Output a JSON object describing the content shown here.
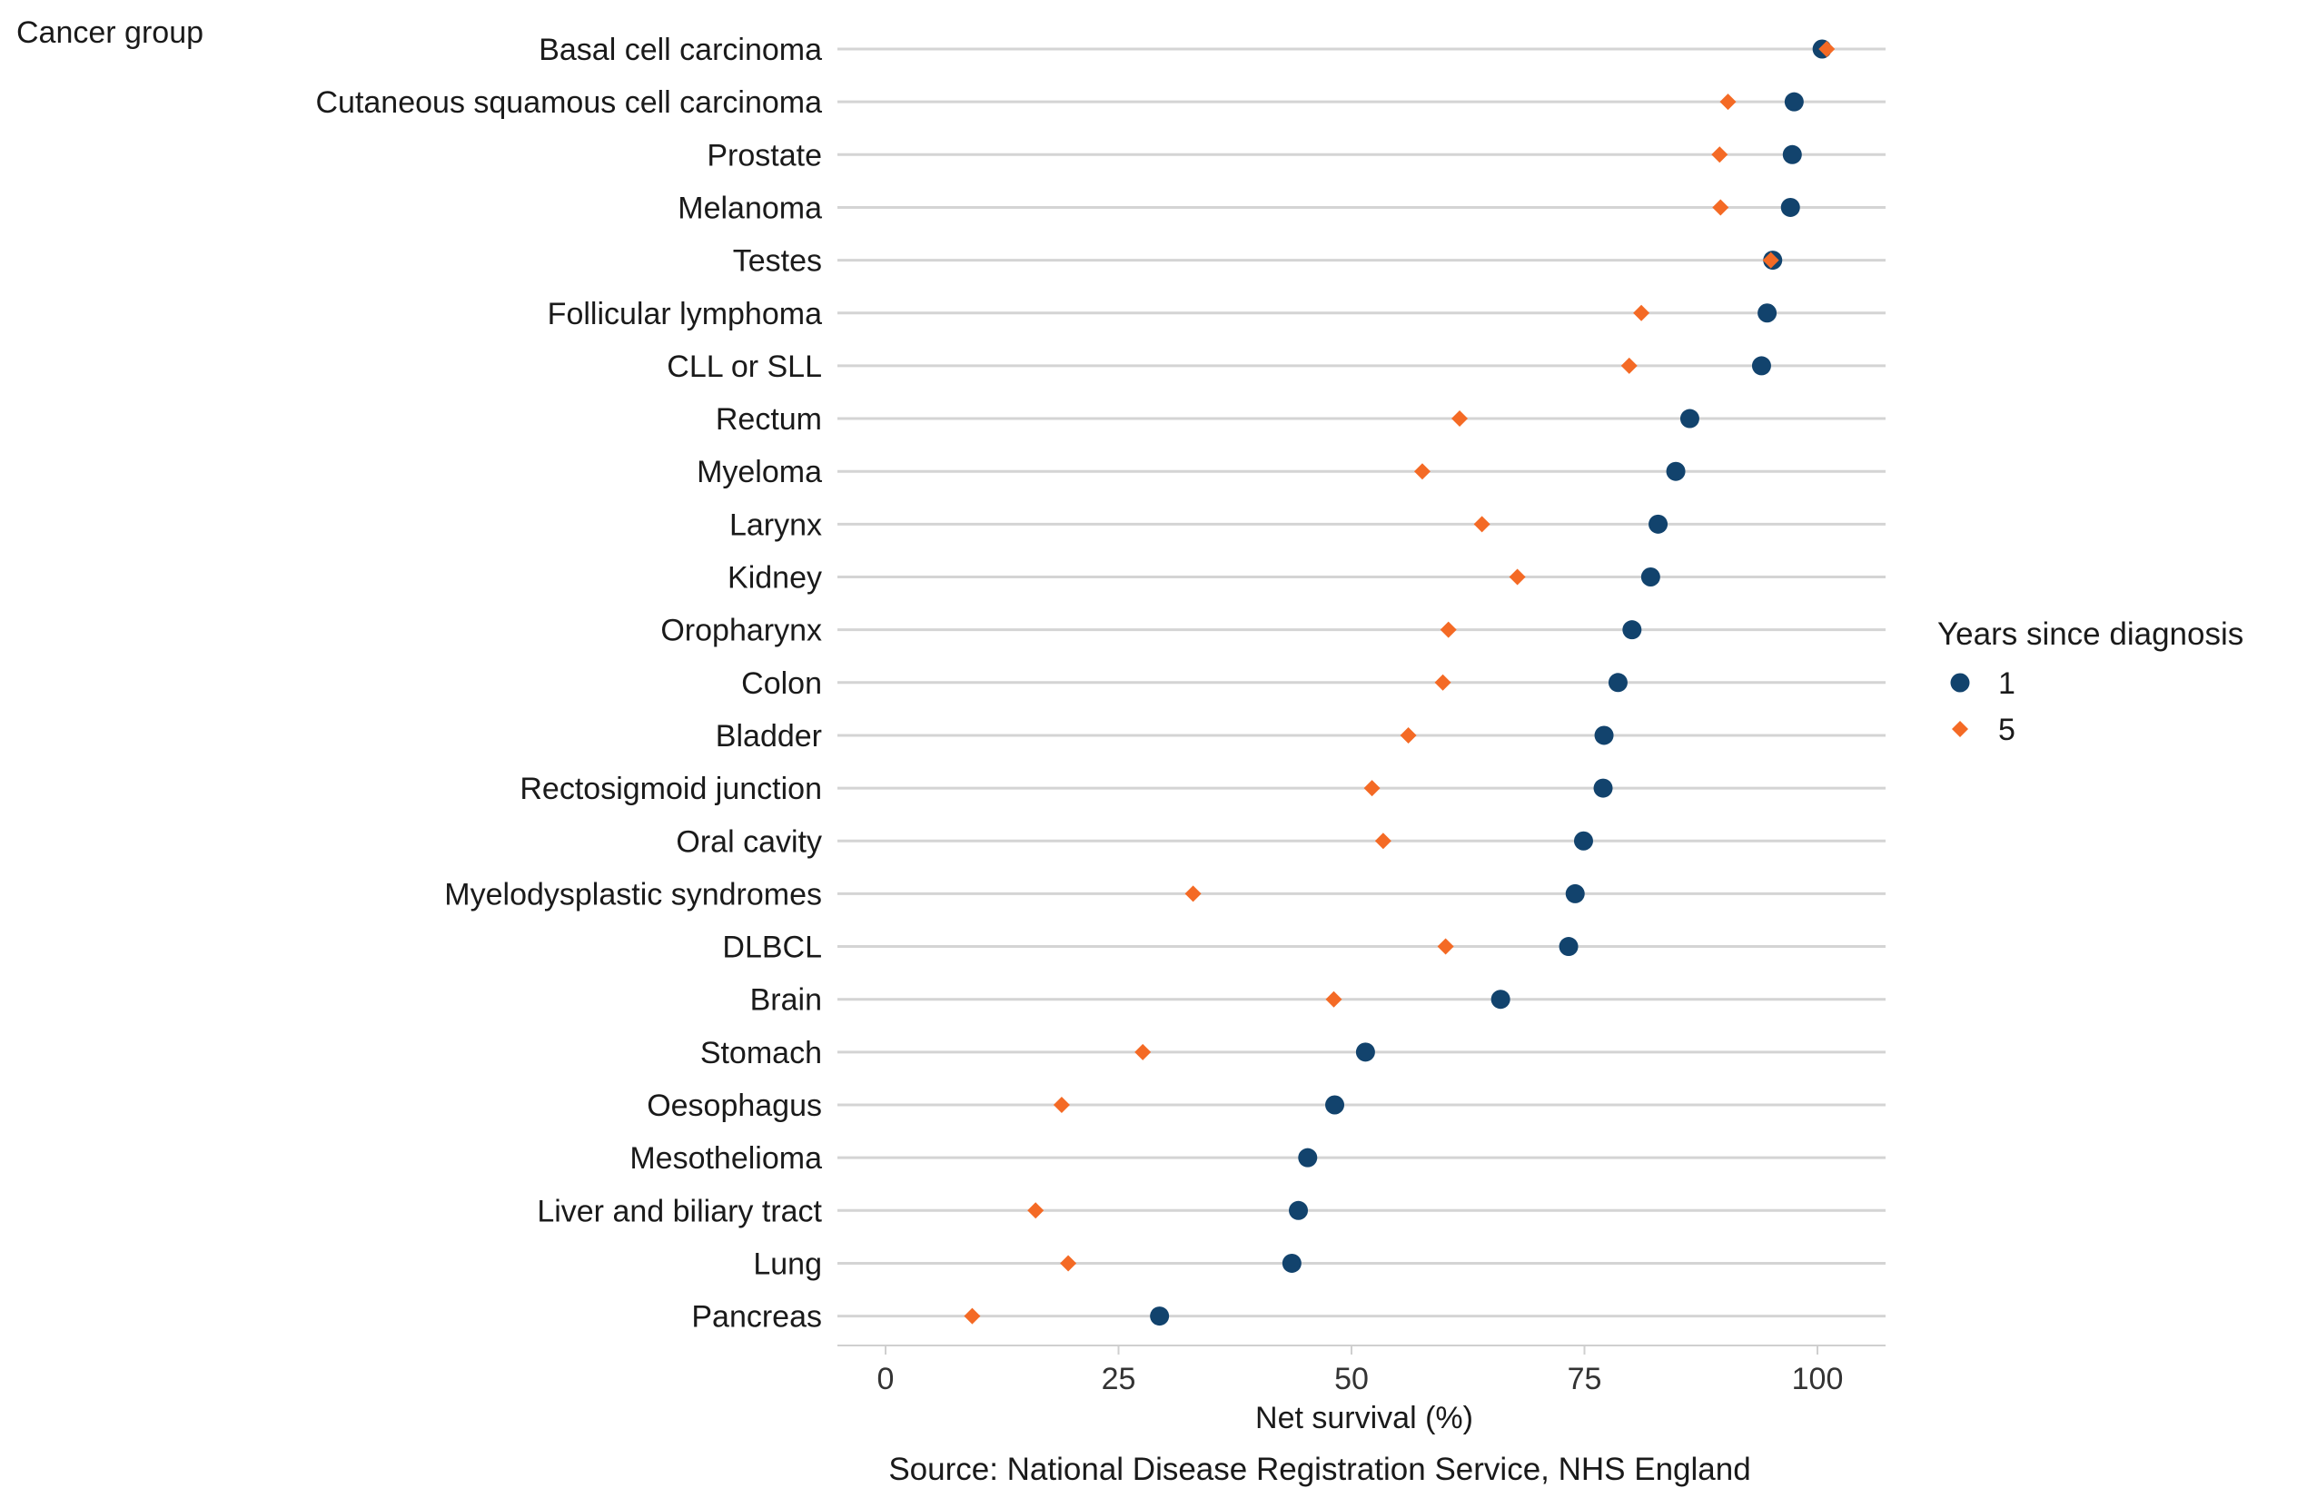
{
  "chart_data": {
    "type": "scatter",
    "ylabel": "Cancer group",
    "xlabel": "Net survival (%)",
    "source": "Source: National Disease Registration Service, NHS England",
    "xlim": [
      -5,
      108
    ],
    "xticks": [
      0,
      25,
      50,
      75,
      100
    ],
    "grid": "horizontal",
    "legend": {
      "title": "Years since diagnosis",
      "placement": "right"
    },
    "categories": [
      "Basal cell carcinoma",
      "Cutaneous squamous cell carcinoma",
      "Prostate",
      "Melanoma",
      "Testes",
      "Follicular lymphoma",
      "CLL or SLL",
      "Rectum",
      "Myeloma",
      "Larynx",
      "Kidney",
      "Oropharynx",
      "Colon",
      "Bladder",
      "Rectosigmoid junction",
      "Oral cavity",
      "Myelodysplastic syndromes",
      "DLBCL",
      "Brain",
      "Stomach",
      "Oesophagus",
      "Mesothelioma",
      "Liver and biliary tract",
      "Lung",
      "Pancreas"
    ],
    "series": [
      {
        "name": "1",
        "marker": "circle",
        "color": "#12436D",
        "values": [
          100.5,
          97.5,
          97.3,
          97.1,
          95.2,
          94.6,
          94.0,
          86.3,
          84.8,
          82.9,
          82.1,
          80.1,
          78.6,
          77.1,
          77.0,
          74.9,
          74.0,
          73.3,
          66.0,
          51.5,
          48.2,
          45.3,
          44.3,
          43.6,
          29.4
        ]
      },
      {
        "name": "5",
        "marker": "diamond",
        "color": "#F46A25",
        "values": [
          101.0,
          90.4,
          89.5,
          89.6,
          95.0,
          81.1,
          79.8,
          61.6,
          57.6,
          64.0,
          67.8,
          60.4,
          59.8,
          56.1,
          52.2,
          53.4,
          33.0,
          60.1,
          48.1,
          27.6,
          18.9,
          null,
          16.1,
          19.6,
          9.3
        ]
      }
    ]
  }
}
